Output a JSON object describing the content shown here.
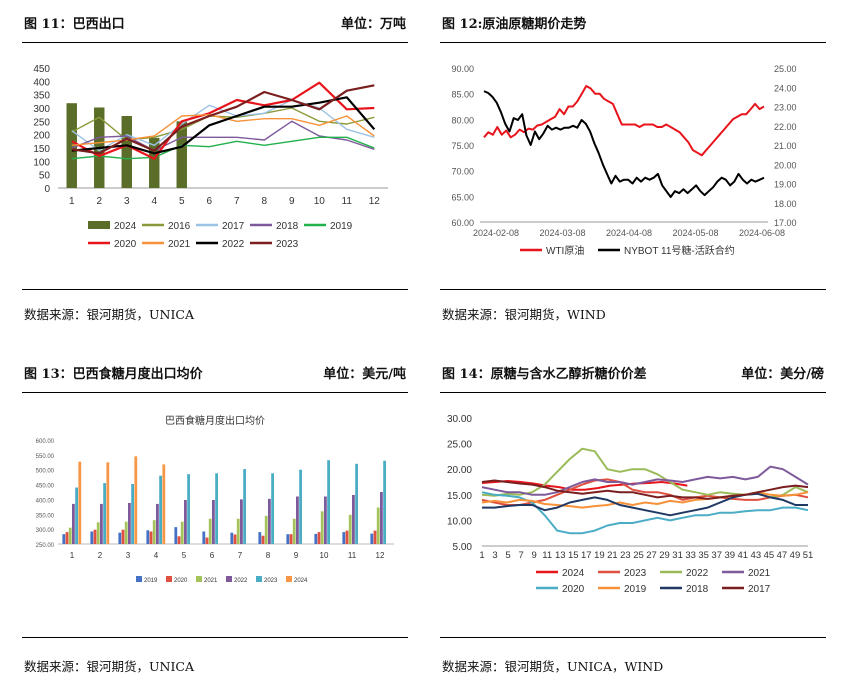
{
  "panels": [
    {
      "id": "p11",
      "title": "图 11：巴西出口",
      "unit": "单位：万吨",
      "source": "数据来源：银河期货，UNICA"
    },
    {
      "id": "p12",
      "title": "图 12:原油原糖期价走势",
      "unit": "",
      "source": "数据来源：银河期货，WIND"
    },
    {
      "id": "p13",
      "title": "图 13：巴西食糖月度出口均价",
      "unit": "单位：美元/吨",
      "source": "数据来源：银河期货，UNICA"
    },
    {
      "id": "p14",
      "title": "图 14：原糖与含水乙醇折糖价价差",
      "unit": "单位：美分/磅",
      "source": "数据来源：银河期货，UNICA，WIND"
    }
  ],
  "chart_data": [
    {
      "type": "line",
      "x": [
        1,
        2,
        3,
        4,
        5,
        6,
        7,
        8,
        9,
        10,
        11,
        12
      ],
      "ylim": [
        0,
        450
      ],
      "yticks": [
        "0",
        "50",
        "100",
        "150",
        "200",
        "250",
        "300",
        "350",
        "400",
        "450"
      ],
      "bar_series": {
        "name": "2024",
        "color": "#5a6e2a",
        "values": [
          318,
          302,
          270,
          188,
          250
        ]
      },
      "series": [
        {
          "name": "2016",
          "color": "#8a9a3a",
          "values": [
            210,
            265,
            180,
            190,
            220,
            270,
            265,
            280,
            300,
            250,
            240,
            265
          ]
        },
        {
          "name": "2017",
          "color": "#9cc2e5",
          "values": [
            215,
            140,
            200,
            160,
            240,
            310,
            270,
            280,
            330,
            300,
            220,
            190
          ]
        },
        {
          "name": "2018",
          "color": "#7e5a9b",
          "values": [
            150,
            190,
            195,
            140,
            190,
            190,
            190,
            180,
            250,
            195,
            180,
            145
          ]
        },
        {
          "name": "2019",
          "color": "#22b14c",
          "values": [
            110,
            120,
            110,
            115,
            160,
            155,
            175,
            160,
            175,
            190,
            190,
            150
          ]
        },
        {
          "name": "2020",
          "color": "#e8141c",
          "values": [
            175,
            120,
            160,
            110,
            250,
            280,
            330,
            310,
            330,
            395,
            295,
            300
          ]
        },
        {
          "name": "2021",
          "color": "#f7923a",
          "values": [
            160,
            170,
            180,
            195,
            270,
            275,
            250,
            260,
            260,
            235,
            270,
            195
          ]
        },
        {
          "name": "2022",
          "color": "#000000",
          "values": [
            140,
            150,
            160,
            130,
            155,
            235,
            270,
            305,
            305,
            320,
            340,
            220
          ]
        },
        {
          "name": "2023",
          "color": "#7a1f1f",
          "values": [
            145,
            130,
            185,
            140,
            230,
            270,
            305,
            360,
            330,
            295,
            365,
            385
          ]
        }
      ]
    },
    {
      "type": "line",
      "x_ticks": [
        "2024-02-08",
        "2024-03-08",
        "2024-04-08",
        "2024-05-08",
        "2024-06-08"
      ],
      "left_ylim": [
        60,
        90
      ],
      "left_ticks": [
        "60.00",
        "65.00",
        "70.00",
        "75.00",
        "80.00",
        "85.00",
        "90.00"
      ],
      "right_ylim": [
        17,
        25
      ],
      "right_ticks": [
        "17.00",
        "18.00",
        "19.00",
        "20.00",
        "21.00",
        "22.00",
        "23.00",
        "24.00",
        "25.00"
      ],
      "series": [
        {
          "name": "WTI原油",
          "color": "#e8141c",
          "axis": "left",
          "values": [
            76.5,
            77.5,
            77,
            78.5,
            77,
            77.8,
            76.5,
            77,
            78,
            77.5,
            78.2,
            78,
            78.8,
            79,
            79.5,
            80,
            80.5,
            82,
            81,
            82.5,
            82.5,
            83.5,
            85,
            86.5,
            86,
            85,
            85,
            84,
            83.5,
            83,
            81,
            79,
            79,
            79,
            79,
            78.5,
            79,
            79,
            79,
            78.5,
            78.5,
            79,
            78.5,
            78,
            77.5,
            76.5,
            75.5,
            74,
            73.5,
            73,
            74,
            75,
            76,
            77,
            78,
            79,
            80,
            80.5,
            81,
            81,
            82,
            83,
            82,
            82.5
          ]
        },
        {
          "name": "NYBOT 11号糖-活跃合约",
          "color": "#000000",
          "axis": "right",
          "values": [
            23.8,
            23.7,
            23.5,
            23.2,
            22.7,
            22.1,
            21.7,
            22.4,
            22.3,
            22.6,
            21.5,
            21.0,
            21.7,
            21.3,
            21.6,
            22.0,
            21.8,
            21.9,
            21.8,
            21.9,
            21.9,
            22.0,
            21.9,
            22.3,
            22.1,
            21.7,
            21.1,
            20.6,
            20.0,
            19.5,
            19.0,
            19.4,
            19.1,
            19.2,
            19.2,
            19.0,
            19.3,
            19.1,
            19.3,
            19.2,
            19.3,
            19.5,
            18.9,
            18.6,
            18.3,
            18.6,
            18.5,
            18.7,
            18.5,
            18.7,
            18.9,
            18.6,
            18.4,
            18.6,
            18.8,
            19.1,
            19.3,
            19.2,
            18.9,
            19.1,
            19.5,
            19.2,
            19.0,
            19.2,
            19.1,
            19.2,
            19.3
          ]
        }
      ]
    },
    {
      "type": "bar",
      "title": "巴西食糖月度出口均价",
      "categories": [
        "1",
        "2",
        "3",
        "4",
        "5",
        "6",
        "7",
        "8",
        "9",
        "10",
        "11",
        "12"
      ],
      "ylim": [
        250,
        600
      ],
      "yticks": [
        "250.00",
        "300.00",
        "350.00",
        "400.00",
        "450.00",
        "500.00",
        "550.00",
        "600.00"
      ],
      "series": [
        {
          "name": "2019",
          "color": "#4472c4",
          "values": [
            283,
            292,
            288,
            296,
            307,
            292,
            288,
            290,
            283,
            284,
            290,
            285
          ]
        },
        {
          "name": "2020",
          "color": "#e05040",
          "values": [
            290,
            298,
            298,
            292,
            276,
            272,
            282,
            278,
            283,
            290,
            295,
            295
          ]
        },
        {
          "name": "2021",
          "color": "#a5c35b",
          "values": [
            305,
            323,
            325,
            330,
            325,
            335,
            335,
            345,
            335,
            360,
            348,
            373
          ]
        },
        {
          "name": "2022",
          "color": "#7e5a9b",
          "values": [
            385,
            385,
            388,
            385,
            398,
            398,
            400,
            402,
            410,
            410,
            415,
            425
          ]
        },
        {
          "name": "2023",
          "color": "#4bacc6",
          "values": [
            440,
            455,
            452,
            480,
            485,
            488,
            502,
            488,
            500,
            532,
            520,
            530
          ]
        },
        {
          "name": "2024",
          "color": "#f79646",
          "values": [
            527,
            525,
            545,
            518,
            null,
            null,
            null,
            null,
            null,
            null,
            null,
            null
          ]
        }
      ]
    },
    {
      "type": "line",
      "x_ticks": [
        "1",
        "3",
        "5",
        "7",
        "9",
        "11",
        "13",
        "15",
        "17",
        "19",
        "21",
        "23",
        "25",
        "27",
        "29",
        "31",
        "33",
        "35",
        "37",
        "39",
        "41",
        "43",
        "45",
        "47",
        "49",
        "51"
      ],
      "ylim": [
        5,
        30
      ],
      "yticks": [
        "5.00",
        "10.00",
        "15.00",
        "20.00",
        "25.00",
        "30.00"
      ],
      "series": [
        {
          "name": "2024",
          "color": "#e8141c",
          "values": [
            17.3,
            17.5,
            17.7,
            17.5,
            17.2,
            16.8,
            16.5,
            16.0,
            16.0,
            16.3,
            16.8,
            17.0,
            17.2,
            17.3,
            17.5,
            17.2,
            16.8
          ]
        },
        {
          "name": "2023",
          "color": "#e05040",
          "values": [
            14.0,
            13.5,
            13.0,
            13.0,
            13.5,
            14.0,
            15.0,
            16.0,
            17.0,
            17.8,
            18.0,
            17.5,
            16.0,
            15.5,
            15.5,
            15.0,
            14.0,
            14.5,
            14.8,
            14.5,
            14.2,
            14.0,
            14.0,
            14.5,
            14.8,
            15.0,
            14.5
          ]
        },
        {
          "name": "2022",
          "color": "#9bbb59",
          "values": [
            15.0,
            14.8,
            15.2,
            15.0,
            15.5,
            17.0,
            19.5,
            22.0,
            24.0,
            23.5,
            20.0,
            19.5,
            20.0,
            20.0,
            19.0,
            17.5,
            16.0,
            15.5,
            15.0,
            15.5,
            15.2,
            15.0,
            15.2,
            14.5,
            15.0,
            16.5,
            15.5
          ]
        },
        {
          "name": "2021",
          "color": "#7e5a9b",
          "values": [
            16.5,
            16.0,
            15.5,
            15.5,
            15.0,
            15.0,
            15.5,
            16.5,
            17.5,
            18.0,
            17.5,
            17.5,
            17.0,
            17.5,
            18.0,
            17.8,
            17.5,
            18.0,
            18.5,
            18.2,
            18.5,
            18.0,
            18.5,
            20.5,
            20.0,
            18.5,
            17.0
          ]
        },
        {
          "name": "2020",
          "color": "#4bacc6",
          "values": [
            15.5,
            15.0,
            14.8,
            14.5,
            13.5,
            11.0,
            8.0,
            7.5,
            7.5,
            8.0,
            9.0,
            9.5,
            9.5,
            10.0,
            10.5,
            10.0,
            10.5,
            11.0,
            11.0,
            11.5,
            11.5,
            11.8,
            12.0,
            12.0,
            12.5,
            12.5,
            12.0
          ]
        },
        {
          "name": "2019",
          "color": "#f7923a",
          "values": [
            13.5,
            13.8,
            13.5,
            14.0,
            13.8,
            13.2,
            13.0,
            12.8,
            12.5,
            12.8,
            13.0,
            13.5,
            13.0,
            13.5,
            13.2,
            13.8,
            13.5,
            14.0,
            14.2,
            14.5,
            14.8,
            15.0,
            15.5,
            15.0,
            14.8,
            15.0,
            15.5
          ]
        },
        {
          "name": "2018",
          "color": "#1f3864",
          "values": [
            12.5,
            12.5,
            12.8,
            13.0,
            13.0,
            12.0,
            12.5,
            13.5,
            14.0,
            14.5,
            14.0,
            13.0,
            12.5,
            12.0,
            11.5,
            11.0,
            11.5,
            12.0,
            12.5,
            13.5,
            14.5,
            15.0,
            15.2,
            14.5,
            14.0,
            13.0,
            13.0
          ]
        },
        {
          "name": "2017",
          "color": "#7a1f1f",
          "values": [
            17.5,
            17.8,
            17.5,
            17.2,
            17.0,
            16.5,
            15.8,
            15.5,
            15.2,
            15.5,
            15.8,
            15.5,
            15.5,
            15.0,
            14.5,
            14.8,
            14.5,
            14.5,
            14.2,
            14.5,
            14.8,
            15.0,
            15.5,
            16.0,
            16.5,
            16.8,
            16.5
          ]
        }
      ]
    }
  ]
}
